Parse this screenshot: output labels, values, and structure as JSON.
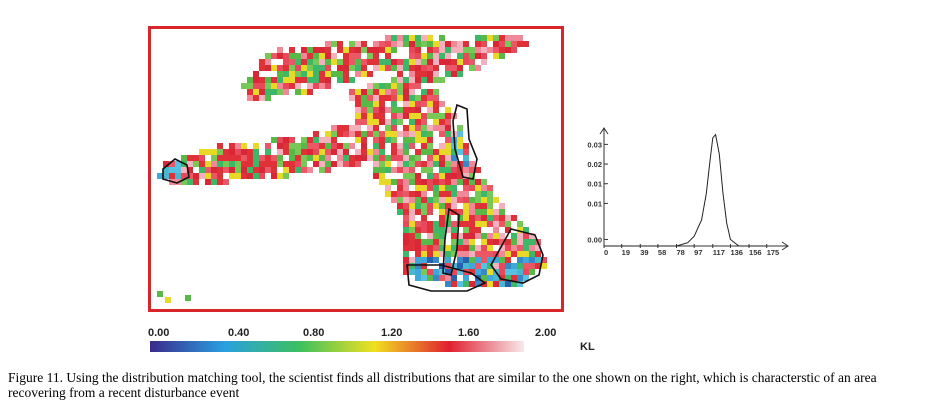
{
  "colorbar": {
    "ticks": [
      "0.00",
      "0.40",
      "0.80",
      "1.20",
      "1.60",
      "2.00"
    ],
    "unit_label": "KL",
    "colors": [
      "#3a2a8c",
      "#2aa0e0",
      "#3cc060",
      "#f0e020",
      "#e02030",
      "#f8e8ea"
    ]
  },
  "distribution": {
    "y_ticks": [
      "0.03",
      "0.02",
      "0.01",
      "0.01",
      "0.00"
    ],
    "x_ticks": [
      "0",
      "19",
      "39",
      "58",
      "78",
      "97",
      "117",
      "136",
      "156",
      "175"
    ],
    "curve": [
      [
        0,
        0
      ],
      [
        19,
        0
      ],
      [
        39,
        0
      ],
      [
        58,
        0
      ],
      [
        78,
        0
      ],
      [
        90,
        0.001
      ],
      [
        97,
        0.003
      ],
      [
        105,
        0.008
      ],
      [
        110,
        0.016
      ],
      [
        114,
        0.026
      ],
      [
        117,
        0.033
      ],
      [
        120,
        0.034
      ],
      [
        124,
        0.028
      ],
      [
        128,
        0.016
      ],
      [
        132,
        0.007
      ],
      [
        136,
        0.002
      ],
      [
        145,
        0
      ],
      [
        156,
        0
      ],
      [
        175,
        0
      ]
    ]
  },
  "caption": {
    "text": "Figure 11.   Using the distribution matching tool, the scientist finds all distributions that are similar to the one shown on the right, which is characterstic of an area recovering from a recent disturbance event"
  }
}
